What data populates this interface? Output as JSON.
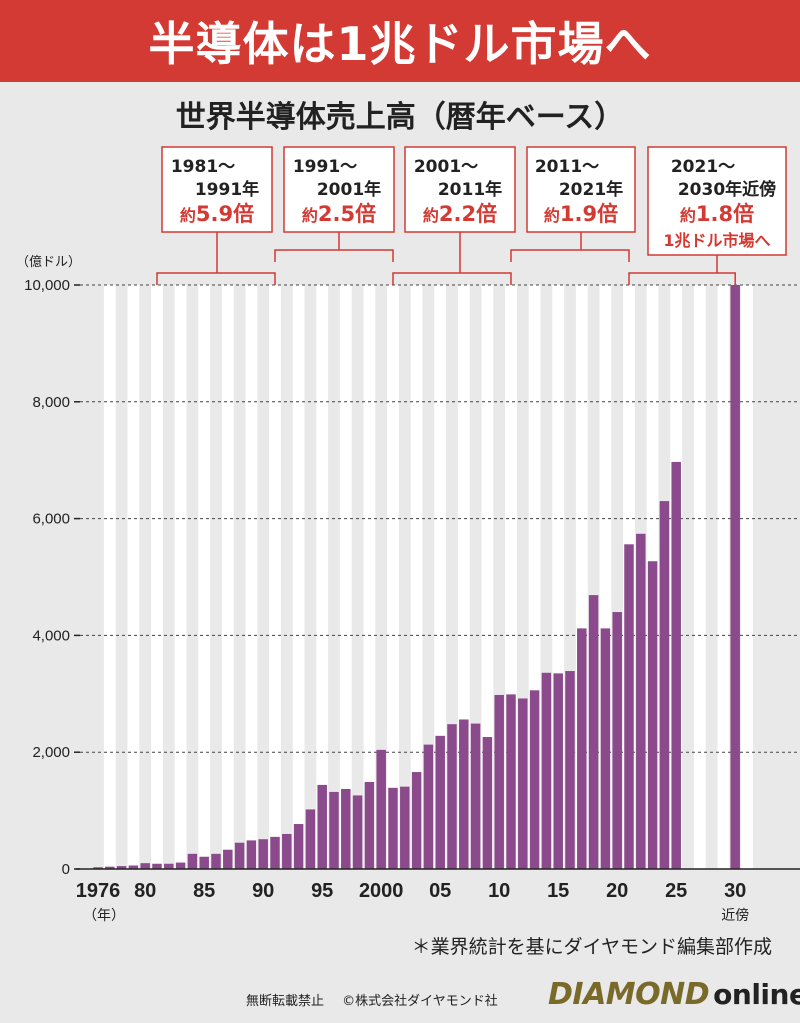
{
  "banner": {
    "title": "半導体は1兆ドル市場へ"
  },
  "chart_data": {
    "type": "bar",
    "title": "世界半導体売上高（暦年ベース）",
    "ylabel": "（億ドル）",
    "xlabel": "（年）",
    "ylim": [
      0,
      10000
    ],
    "yticks": [
      0,
      2000,
      4000,
      6000,
      8000,
      10000
    ],
    "ytick_labels": [
      "0",
      "2,000",
      "4,000",
      "6,000",
      "8,000",
      "10,000"
    ],
    "x_tick_labels": [
      {
        "year": 1976,
        "label": "1976"
      },
      {
        "year": 1980,
        "label": "80"
      },
      {
        "year": 1985,
        "label": "85"
      },
      {
        "year": 1990,
        "label": "90"
      },
      {
        "year": 1995,
        "label": "95"
      },
      {
        "year": 2000,
        "label": "2000"
      },
      {
        "year": 2005,
        "label": "05"
      },
      {
        "year": 2010,
        "label": "10"
      },
      {
        "year": 2015,
        "label": "15"
      },
      {
        "year": 2020,
        "label": "20"
      },
      {
        "year": 2025,
        "label": "25"
      },
      {
        "year": 2030,
        "label": "30",
        "sublabel": "近傍"
      }
    ],
    "years": [
      1976,
      1977,
      1978,
      1979,
      1980,
      1981,
      1982,
      1983,
      1984,
      1985,
      1986,
      1987,
      1988,
      1989,
      1990,
      1991,
      1992,
      1993,
      1994,
      1995,
      1996,
      1997,
      1998,
      1999,
      2000,
      2001,
      2002,
      2003,
      2004,
      2005,
      2006,
      2007,
      2008,
      2009,
      2010,
      2011,
      2012,
      2013,
      2014,
      2015,
      2016,
      2017,
      2018,
      2019,
      2020,
      2021,
      2022,
      2023,
      2024,
      2025,
      2030
    ],
    "values": [
      30,
      40,
      50,
      60,
      100,
      90,
      90,
      110,
      260,
      210,
      260,
      330,
      450,
      490,
      510,
      550,
      600,
      770,
      1020,
      1440,
      1320,
      1370,
      1260,
      1490,
      2040,
      1390,
      1410,
      1660,
      2130,
      2280,
      2480,
      2560,
      2490,
      2260,
      2980,
      2990,
      2920,
      3060,
      3360,
      3350,
      3390,
      4120,
      4690,
      4120,
      4400,
      5560,
      5740,
      5270,
      6300,
      6970,
      10000
    ],
    "bar_color": "#8b4a8c",
    "annotations": [
      {
        "line1": "1981～",
        "line2": "1991年",
        "prefix": "約",
        "value": "5.9倍",
        "extra": "",
        "from": 1981,
        "to": 1991
      },
      {
        "line1": "1991～",
        "line2": "2001年",
        "prefix": "約",
        "value": "2.5倍",
        "extra": "",
        "from": 1991,
        "to": 2001
      },
      {
        "line1": "2001～",
        "line2": "2011年",
        "prefix": "約",
        "value": "2.2倍",
        "extra": "",
        "from": 2001,
        "to": 2011
      },
      {
        "line1": "2011～",
        "line2": "2021年",
        "prefix": "約",
        "value": "1.9倍",
        "extra": "",
        "from": 2011,
        "to": 2021
      },
      {
        "line1": "2021～",
        "line2": "2030年近傍",
        "prefix": "約",
        "value": "1.8倍",
        "extra": "1兆ドル市場へ",
        "from": 2021,
        "to": 2030
      }
    ],
    "accent_color": "#d33a33"
  },
  "source_note": "＊業界統計を基にダイヤモンド編集部作成",
  "footer": {
    "no_reprint": "無断転載禁止",
    "copyright": "©株式会社ダイヤモンド社",
    "logo_brand": "DIAMOND",
    "logo_online": "online"
  }
}
